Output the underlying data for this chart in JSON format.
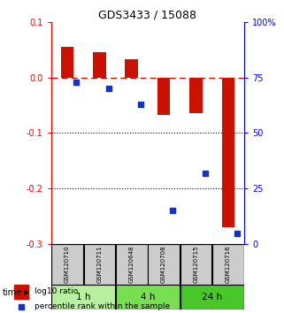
{
  "title": "GDS3433 / 15088",
  "samples": [
    "GSM120710",
    "GSM120711",
    "GSM120648",
    "GSM120708",
    "GSM120715",
    "GSM120716"
  ],
  "log10_ratio": [
    0.055,
    0.045,
    0.033,
    -0.068,
    -0.065,
    -0.27
  ],
  "percentile_rank": [
    73,
    70,
    63,
    15,
    32,
    5
  ],
  "time_groups": [
    {
      "label": "1 h",
      "color": "#b8f0a0",
      "start": 0,
      "end": 1
    },
    {
      "label": "4 h",
      "color": "#78e050",
      "start": 2,
      "end": 3
    },
    {
      "label": "24 h",
      "color": "#48c828",
      "start": 4,
      "end": 5
    }
  ],
  "ylim_left": [
    -0.3,
    0.1
  ],
  "ylim_right": [
    0,
    100
  ],
  "bar_color": "#cc1100",
  "dot_color": "#1133cc",
  "dashed_line_color": "#cc1100",
  "grid_color": "#000000",
  "background_color": "#ffffff",
  "sample_box_color": "#cccccc",
  "yticks_left": [
    0.1,
    0.0,
    -0.1,
    -0.2,
    -0.3
  ],
  "yticks_right": [
    100,
    75,
    50,
    25,
    0
  ]
}
